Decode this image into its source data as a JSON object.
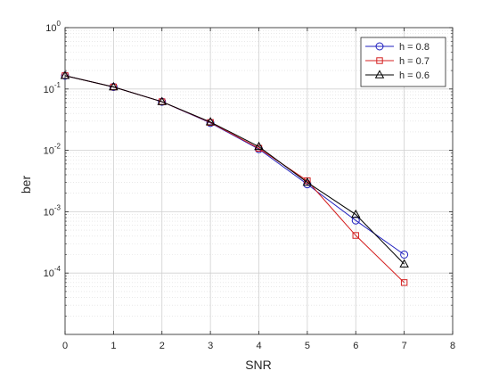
{
  "chart_data": {
    "type": "line",
    "title": "",
    "xlabel": "SNR",
    "ylabel": "ber",
    "xlim": [
      0,
      8
    ],
    "ylim": [
      1e-05,
      1
    ],
    "yscale": "log",
    "grid": true,
    "minor_grid": true,
    "legend_position": "top-right",
    "x_ticks": [
      "0",
      "1",
      "2",
      "3",
      "4",
      "5",
      "6",
      "7",
      "8"
    ],
    "y_ticks": [
      {
        "base": "10",
        "exp": "-4",
        "value": 0.0001
      },
      {
        "base": "10",
        "exp": "-3",
        "value": 0.001
      },
      {
        "base": "10",
        "exp": "-2",
        "value": 0.01
      },
      {
        "base": "10",
        "exp": "-1",
        "value": 0.1
      },
      {
        "base": "10",
        "exp": "0",
        "value": 1
      }
    ],
    "series": [
      {
        "name": "h = 0.8",
        "color": "#1f1fbf",
        "marker": "circle",
        "x": [
          0,
          1,
          2,
          3,
          4,
          5,
          6,
          7
        ],
        "y": [
          0.165,
          0.108,
          0.062,
          0.028,
          0.0105,
          0.0028,
          0.00072,
          0.0002
        ]
      },
      {
        "name": "h = 0.7",
        "color": "#d42020",
        "marker": "square",
        "x": [
          0,
          1,
          2,
          3,
          4,
          5,
          6,
          7
        ],
        "y": [
          0.165,
          0.108,
          0.062,
          0.0285,
          0.0108,
          0.0032,
          0.00041,
          7e-05
        ]
      },
      {
        "name": "h = 0.6",
        "color": "#000000",
        "marker": "triangle",
        "x": [
          0,
          1,
          2,
          3,
          4,
          5,
          6,
          7
        ],
        "y": [
          0.165,
          0.108,
          0.062,
          0.029,
          0.0115,
          0.003,
          0.0009,
          0.00014
        ]
      }
    ]
  }
}
